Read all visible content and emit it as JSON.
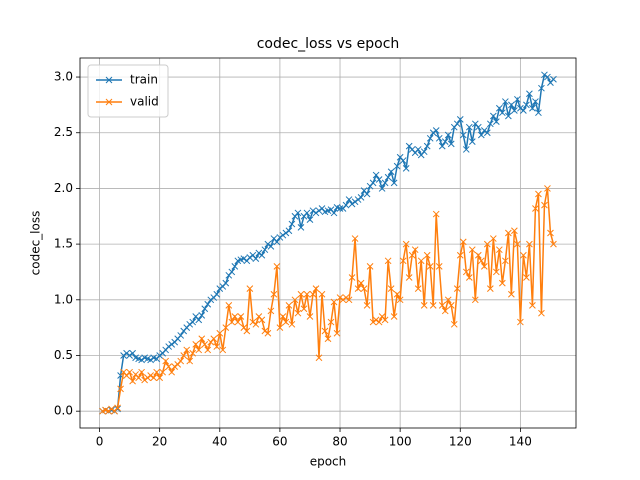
{
  "chart_data": {
    "type": "line",
    "title": "codec_loss vs epoch",
    "xlabel": "epoch",
    "ylabel": "codec_loss",
    "x": [
      1,
      2,
      3,
      4,
      5,
      6,
      7,
      8,
      9,
      10,
      11,
      12,
      13,
      14,
      15,
      16,
      17,
      18,
      19,
      20,
      21,
      22,
      23,
      24,
      25,
      26,
      27,
      28,
      29,
      30,
      31,
      32,
      33,
      34,
      35,
      36,
      37,
      38,
      39,
      40,
      41,
      42,
      43,
      44,
      45,
      46,
      47,
      48,
      49,
      50,
      51,
      52,
      53,
      54,
      55,
      56,
      57,
      58,
      59,
      60,
      61,
      62,
      63,
      64,
      65,
      66,
      67,
      68,
      69,
      70,
      71,
      72,
      73,
      74,
      75,
      76,
      77,
      78,
      79,
      80,
      81,
      82,
      83,
      84,
      85,
      86,
      87,
      88,
      89,
      90,
      91,
      92,
      93,
      94,
      95,
      96,
      97,
      98,
      99,
      100,
      101,
      102,
      103,
      104,
      105,
      106,
      107,
      108,
      109,
      110,
      111,
      112,
      113,
      114,
      115,
      116,
      117,
      118,
      119,
      120,
      121,
      122,
      123,
      124,
      125,
      126,
      127,
      128,
      129,
      130,
      131,
      132,
      133,
      134,
      135,
      136,
      137,
      138,
      139,
      140,
      141,
      142,
      143,
      144,
      145,
      146,
      147,
      148,
      149,
      150,
      151
    ],
    "series": [
      {
        "name": "train",
        "color": "#1f77b4",
        "values": [
          0,
          0.01,
          0,
          0.01,
          0,
          0.02,
          0.32,
          0.5,
          0.52,
          0.5,
          0.52,
          0.48,
          0.47,
          0.46,
          0.48,
          0.47,
          0.46,
          0.48,
          0.47,
          0.5,
          0.52,
          0.55,
          0.58,
          0.6,
          0.62,
          0.65,
          0.68,
          0.72,
          0.75,
          0.78,
          0.8,
          0.85,
          0.82,
          0.86,
          0.92,
          0.96,
          1.0,
          1.02,
          1.05,
          1.1,
          1.12,
          1.15,
          1.22,
          1.25,
          1.3,
          1.35,
          1.36,
          1.37,
          1.35,
          1.38,
          1.4,
          1.37,
          1.42,
          1.4,
          1.45,
          1.5,
          1.48,
          1.55,
          1.52,
          1.56,
          1.58,
          1.6,
          1.62,
          1.68,
          1.75,
          1.78,
          1.65,
          1.75,
          1.78,
          1.72,
          1.8,
          1.78,
          1.8,
          1.82,
          1.79,
          1.8,
          1.81,
          1.78,
          1.83,
          1.82,
          1.82,
          1.85,
          1.9,
          1.86,
          1.88,
          1.9,
          1.92,
          1.98,
          1.95,
          2.02,
          2.05,
          2.12,
          2.08,
          2.0,
          2.05,
          2.1,
          2.15,
          2.05,
          2.2,
          2.28,
          2.25,
          2.18,
          2.38,
          2.35,
          2.32,
          2.35,
          2.3,
          2.33,
          2.38,
          2.45,
          2.5,
          2.52,
          2.45,
          2.38,
          2.42,
          2.48,
          2.4,
          2.55,
          2.58,
          2.62,
          2.48,
          2.35,
          2.55,
          2.42,
          2.58,
          2.55,
          2.48,
          2.52,
          2.5,
          2.58,
          2.65,
          2.6,
          2.72,
          2.68,
          2.78,
          2.65,
          2.75,
          2.7,
          2.8,
          2.72,
          2.7,
          2.75,
          2.85,
          2.72,
          2.78,
          2.68,
          2.9,
          3.02,
          3.0,
          2.95,
          2.98
        ]
      },
      {
        "name": "valid",
        "color": "#ff7f0e",
        "values": [
          0,
          0.01,
          0,
          0.02,
          0,
          0.03,
          0.2,
          0.35,
          0.32,
          0.35,
          0.27,
          0.33,
          0.3,
          0.35,
          0.28,
          0.3,
          0.32,
          0.3,
          0.35,
          0.3,
          0.35,
          0.45,
          0.4,
          0.35,
          0.4,
          0.42,
          0.45,
          0.5,
          0.55,
          0.45,
          0.52,
          0.6,
          0.55,
          0.65,
          0.6,
          0.55,
          0.62,
          0.65,
          0.58,
          0.7,
          0.55,
          0.75,
          0.95,
          0.8,
          0.85,
          0.8,
          0.85,
          0.75,
          0.72,
          1.1,
          0.8,
          0.78,
          0.85,
          0.82,
          0.72,
          0.7,
          0.9,
          1.05,
          1.3,
          0.75,
          0.85,
          0.8,
          0.95,
          0.78,
          1.0,
          0.88,
          1.05,
          0.92,
          1.05,
          0.85,
          1.05,
          1.1,
          0.48,
          1.05,
          0.72,
          0.65,
          0.8,
          0.98,
          0.7,
          1.02,
          1.0,
          1.02,
          1.0,
          1.2,
          1.55,
          1.1,
          1.15,
          1.1,
          0.95,
          1.3,
          0.8,
          0.82,
          0.8,
          0.85,
          0.82,
          1.35,
          1.1,
          0.85,
          1.05,
          1.0,
          1.35,
          1.5,
          1.2,
          1.4,
          1.45,
          1.1,
          1.35,
          0.95,
          1.4,
          1.3,
          0.95,
          1.77,
          1.3,
          0.95,
          0.9,
          1.0,
          0.95,
          0.78,
          1.1,
          1.4,
          1.52,
          1.25,
          1.2,
          1.45,
          1.0,
          1.4,
          1.35,
          1.3,
          1.5,
          1.1,
          1.55,
          1.25,
          1.45,
          1.15,
          1.35,
          1.6,
          1.05,
          1.62,
          1.5,
          0.8,
          1.4,
          1.2,
          1.5,
          0.95,
          1.82,
          1.95,
          0.88,
          1.85,
          2.0,
          1.6,
          1.5
        ]
      }
    ],
    "xlim": [
      -6.5,
      158.5
    ],
    "xticks": [
      0,
      20,
      40,
      60,
      80,
      100,
      120,
      140
    ],
    "ylim": [
      -0.151,
      3.171
    ],
    "yticks": [
      {
        "value": 0,
        "label": "0.0"
      },
      0.5,
      {
        "value": 1,
        "label": "1.0"
      },
      1.5,
      {
        "value": 2,
        "label": "2.0"
      },
      2.5,
      {
        "value": 3,
        "label": "3.0"
      }
    ],
    "grid": true,
    "legend": "upper left",
    "marker": "x"
  }
}
